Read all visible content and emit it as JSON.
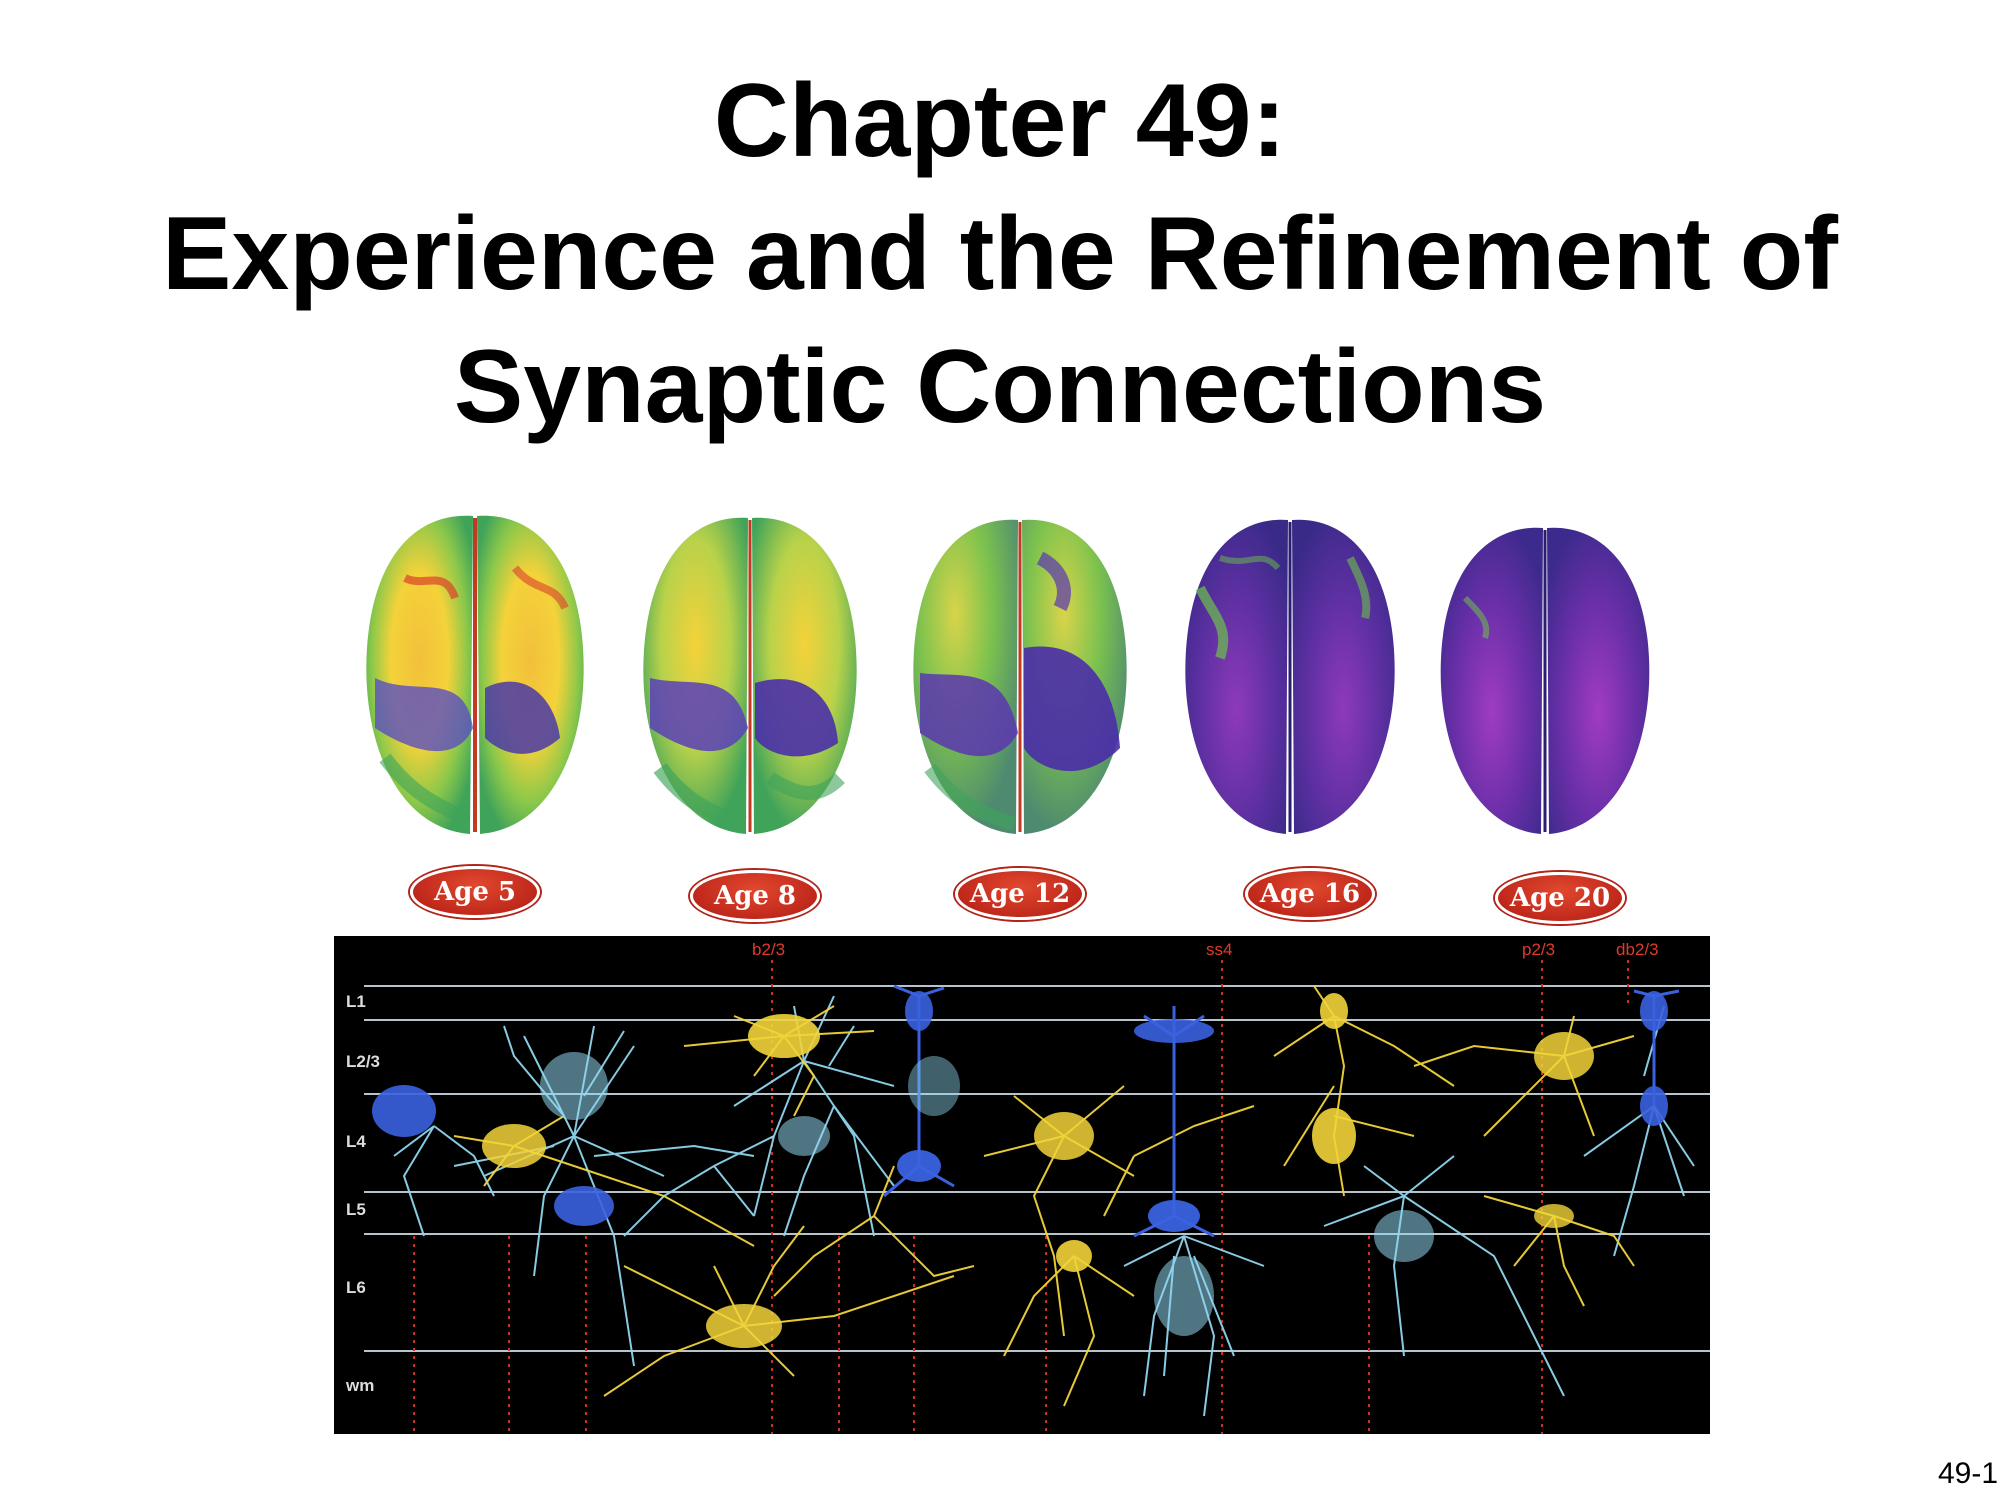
{
  "slide": {
    "title_lines": [
      "Chapter 49:",
      "Experience and the Refinement of",
      "Synaptic Connections"
    ],
    "page_number": "49-1"
  },
  "brain_figure": {
    "ages": [
      "Age 5",
      "Age 8",
      "Age 12",
      "Age 16",
      "Age 20"
    ],
    "colors": {
      "yellow": "#f4d23a",
      "green": "#6cc24a",
      "purple": "#5a2fa0",
      "magenta": "#8e3ab8",
      "red": "#d9412a",
      "badge": "#c0281b"
    }
  },
  "neuron_figure": {
    "layer_labels": [
      "L1",
      "L2/3",
      "L4",
      "L5",
      "L6",
      "wm"
    ],
    "cell_type_labels": [
      "b2/3",
      "ss4",
      "p2/3",
      "db2/3"
    ],
    "colors": {
      "background": "#000000",
      "yellow_neuron": "#f2d43a",
      "cyan_neuron": "#8fd6ef",
      "blue_neuron": "#3a62e0",
      "layer_line": "#b8c4cc",
      "label_red": "#e03a2a"
    }
  }
}
